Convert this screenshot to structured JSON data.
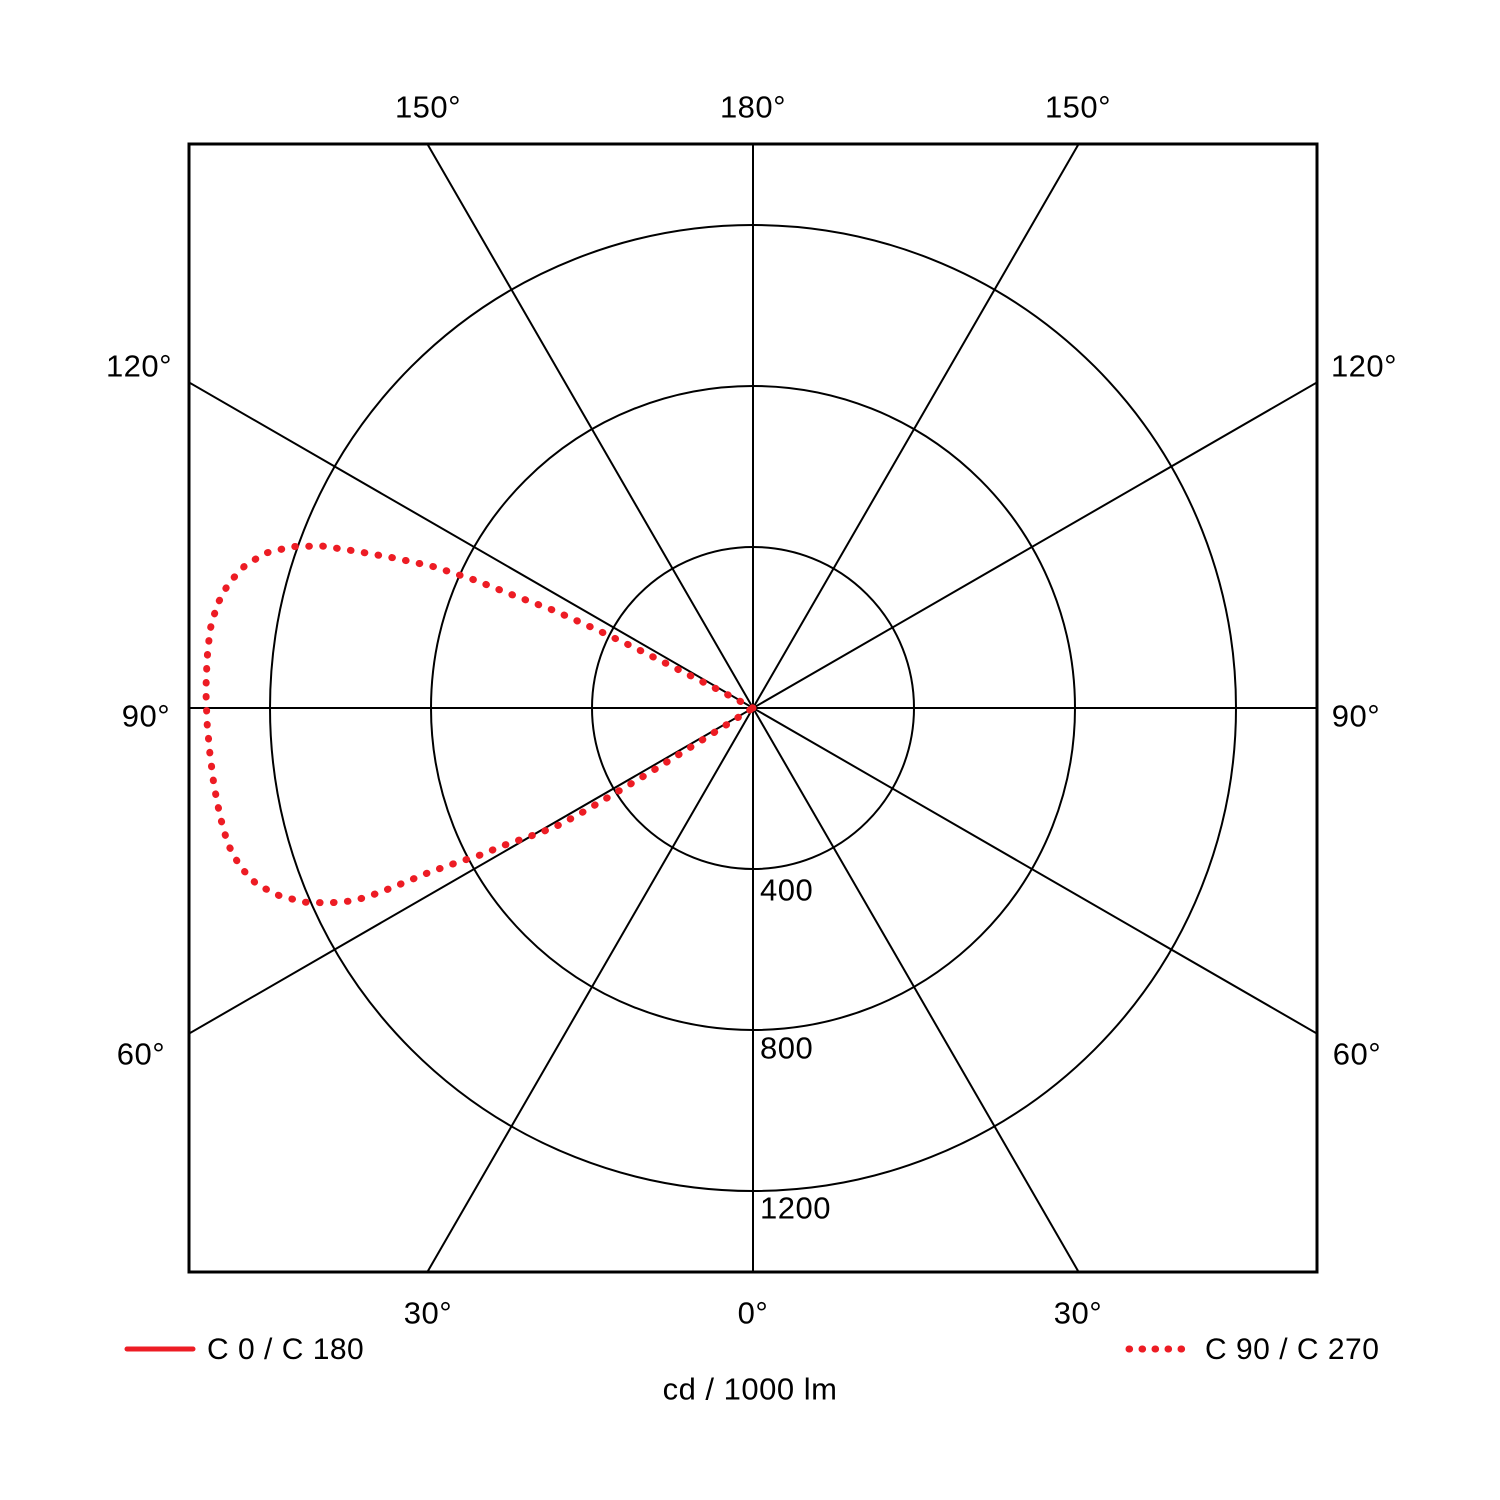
{
  "colors": {
    "curve_red": "#ed1c24",
    "grid_black": "#000000",
    "background": "#ffffff"
  },
  "labels": {
    "top_left": "150°",
    "top_center": "180°",
    "top_right": "150°",
    "bottom_left": "30°",
    "bottom_center": "0°",
    "bottom_right": "30°",
    "left_upper": "120°",
    "left_middle": "90°",
    "left_lower": "60°",
    "right_upper": "120°",
    "right_middle": "90°",
    "right_lower": "60°",
    "ring_400": "400",
    "ring_800": "800",
    "ring_1200": "1200",
    "caption": "cd / 1000 lm"
  },
  "legend": {
    "solid_label": "C 0 / C 180",
    "dotted_label": "C 90 / C 270"
  },
  "chart_data": {
    "type": "polar",
    "subtype": "luminous-intensity-distribution",
    "units_label": "cd / 1000 lm",
    "radial_ticks": [
      400,
      800,
      1200
    ],
    "radial_axis_max": 1400,
    "radial_line_angles_deg": [
      0,
      30,
      60,
      90,
      120,
      150
    ],
    "angle_labels_top": [
      "150°",
      "180°",
      "150°"
    ],
    "angle_labels_bottom": [
      "30°",
      "0°",
      "30°"
    ],
    "angle_labels_sides": [
      "120°",
      "90°",
      "60°"
    ],
    "grid": true,
    "legend_position": "bottom",
    "series": [
      {
        "name": "C 0 / C 180",
        "line_style": "solid",
        "color": "#ed1c24",
        "points": [],
        "note": "no visible curve in plot area"
      },
      {
        "name": "C 90 / C 270",
        "line_style": "dotted",
        "color": "#ed1c24",
        "peak_cd_per_1000lm": 1363,
        "beam_span_gamma_deg": [
          58,
          118
        ],
        "points": [
          [
            117.6,
            0
          ],
          [
            117.6,
            110
          ],
          [
            117.2,
            220
          ],
          [
            117.0,
            330
          ],
          [
            116.6,
            440
          ],
          [
            116.1,
            550
          ],
          [
            115.2,
            655
          ],
          [
            114.7,
            760
          ],
          [
            113.9,
            866
          ],
          [
            112.7,
            966
          ],
          [
            111.5,
            1065
          ],
          [
            110.6,
            1144
          ],
          [
            109.3,
            1213
          ],
          [
            107.7,
            1268
          ],
          [
            105.8,
            1309
          ],
          [
            103.4,
            1339
          ],
          [
            100.9,
            1356
          ],
          [
            98.2,
            1363
          ],
          [
            95.2,
            1362
          ],
          [
            91.9,
            1360
          ],
          [
            88.5,
            1357
          ],
          [
            85.2,
            1354
          ],
          [
            81.8,
            1353
          ],
          [
            78.5,
            1351
          ],
          [
            75.5,
            1348
          ],
          [
            72.8,
            1334
          ],
          [
            70.4,
            1308
          ],
          [
            68.4,
            1266
          ],
          [
            66.6,
            1215
          ],
          [
            65.3,
            1159
          ],
          [
            64.2,
            1100
          ],
          [
            63.7,
            1035
          ],
          [
            63.4,
            967
          ],
          [
            63.1,
            902
          ],
          [
            62.5,
            836
          ],
          [
            61.7,
            772
          ],
          [
            61.1,
            705
          ],
          [
            60.1,
            641
          ],
          [
            59.0,
            575
          ],
          [
            58.6,
            510
          ],
          [
            58.4,
            440
          ],
          [
            58.2,
            370
          ],
          [
            58.0,
            300
          ],
          [
            57.9,
            230
          ],
          [
            57.8,
            150
          ],
          [
            57.8,
            75
          ],
          [
            57.8,
            0
          ]
        ]
      }
    ]
  }
}
